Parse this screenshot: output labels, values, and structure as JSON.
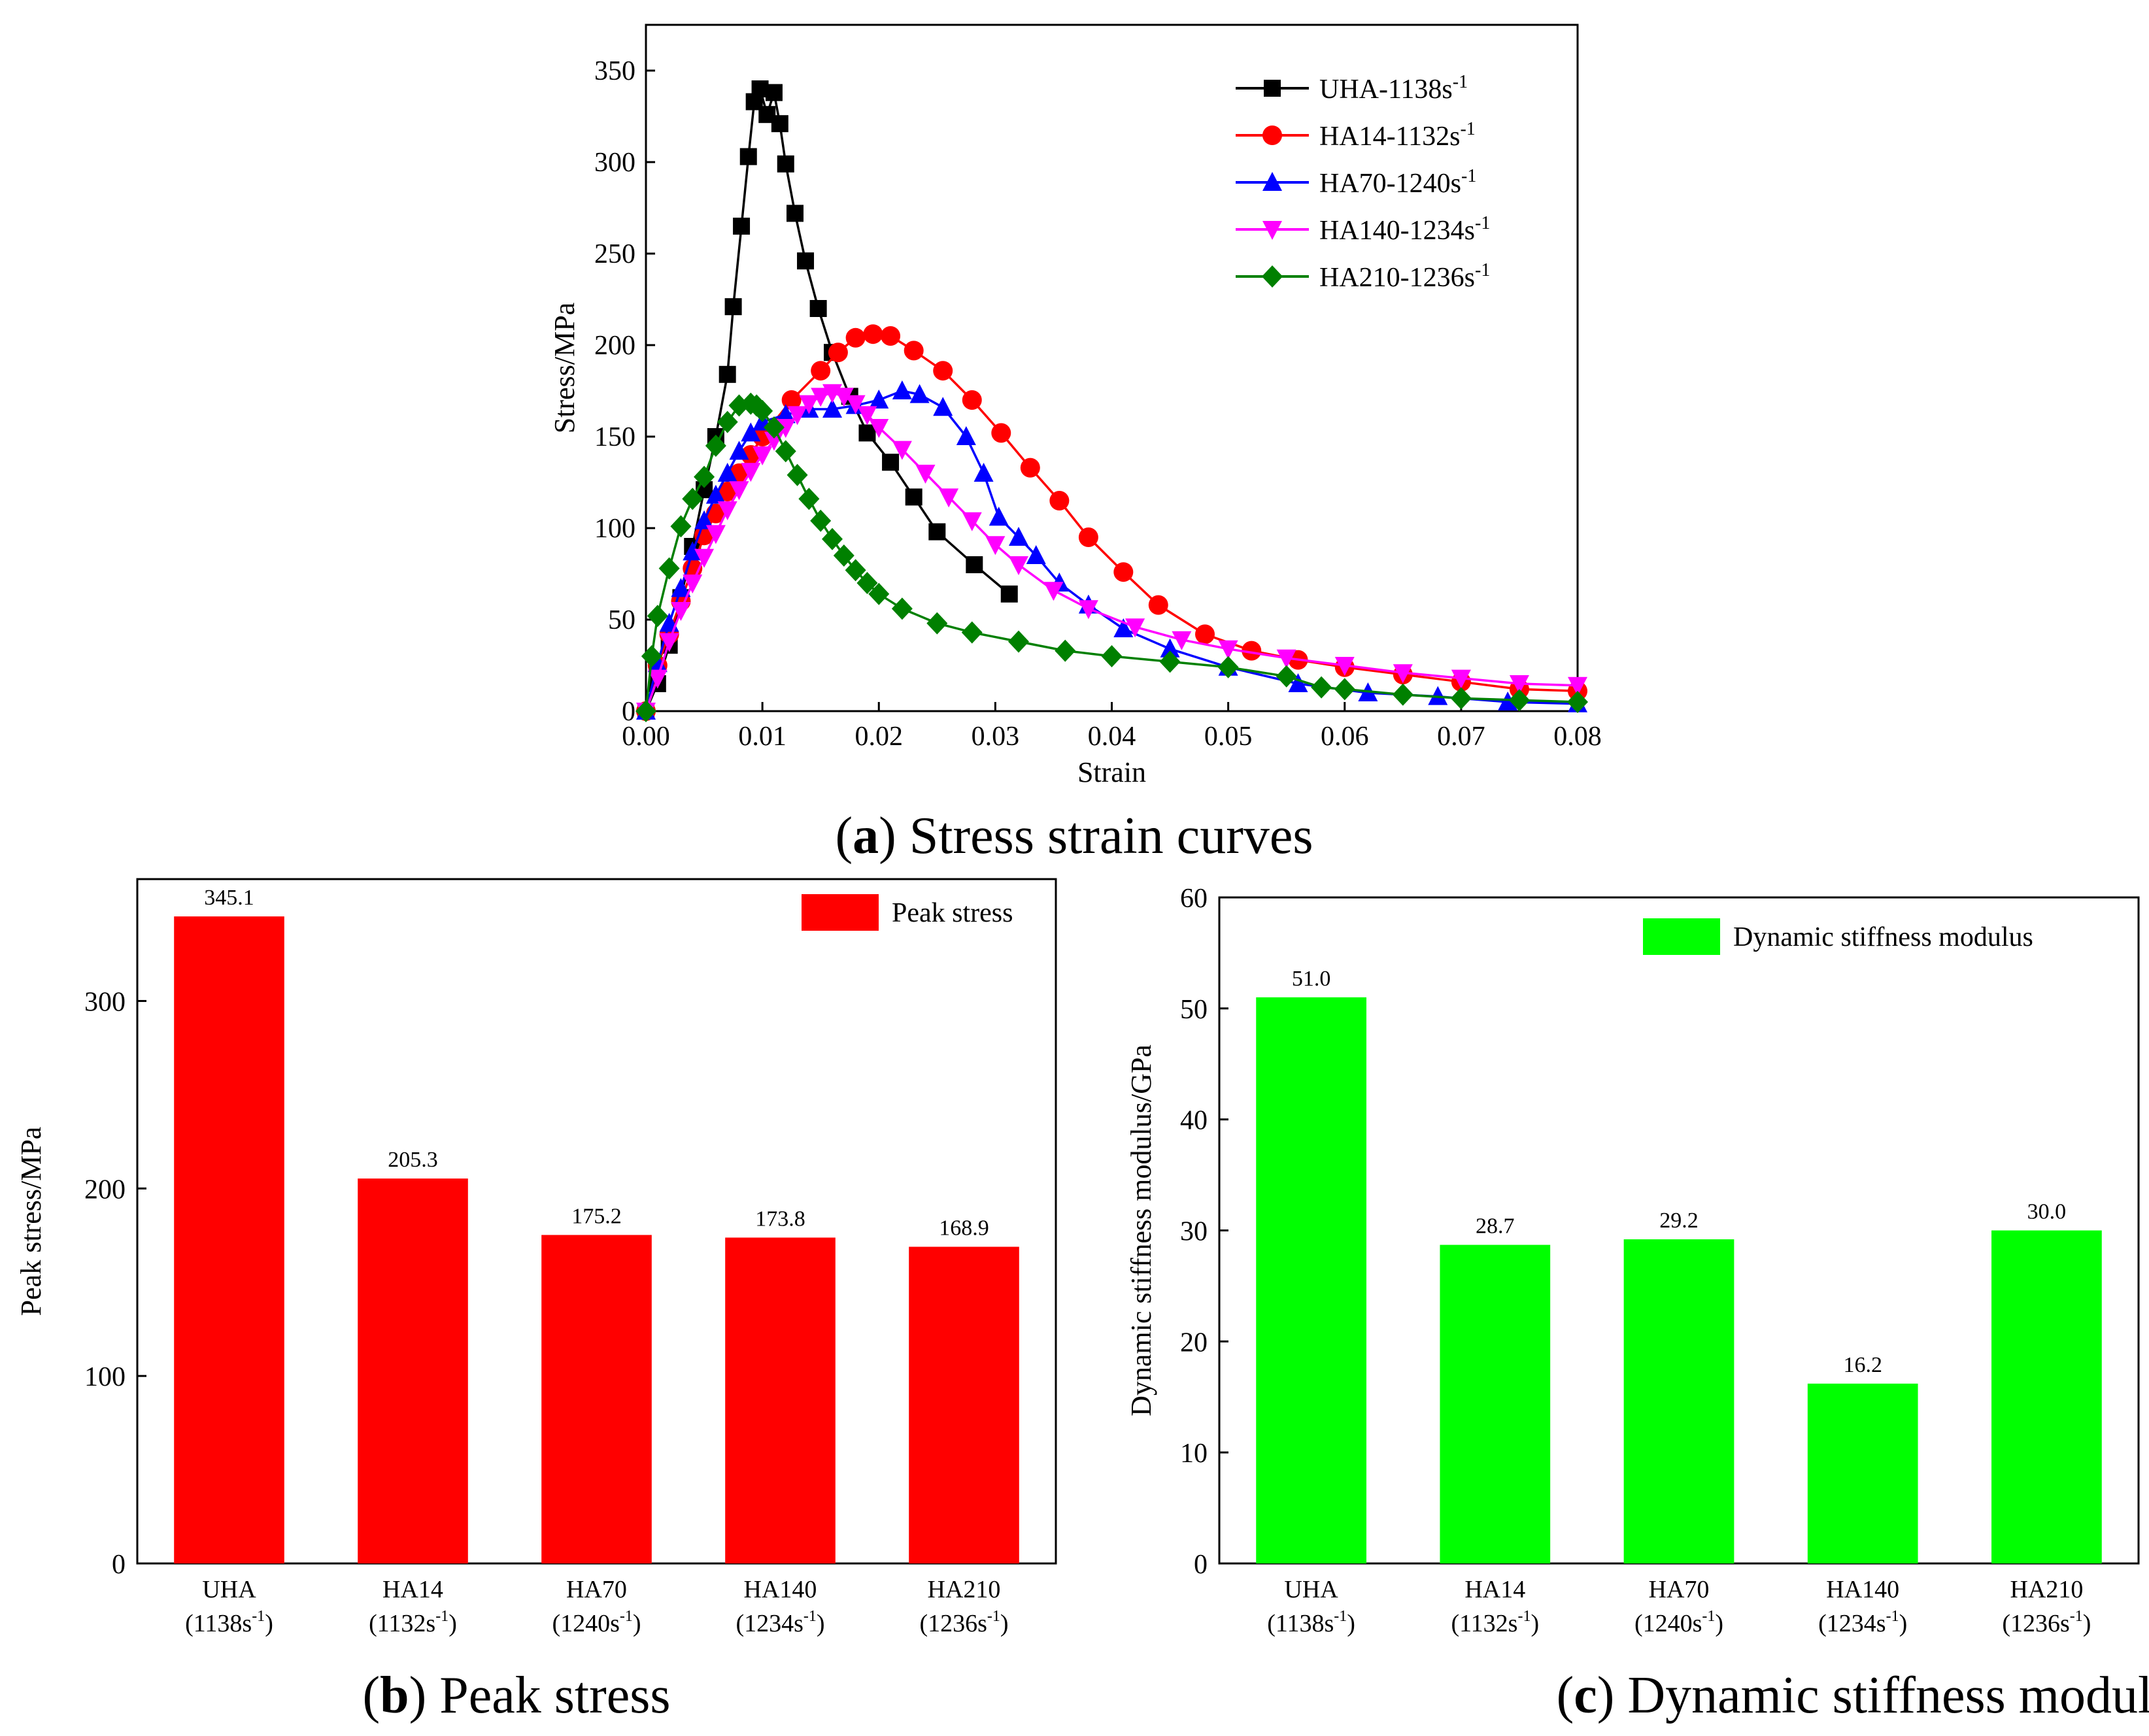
{
  "chart_data": [
    {
      "type": "line",
      "caption_letter": "a",
      "caption_text": "Stress strain curves",
      "xlabel": "Strain",
      "ylabel": "Stress/MPa",
      "xlim": [
        0,
        0.08
      ],
      "ylim": [
        0,
        375
      ],
      "xticks": [
        "0.00",
        "0.01",
        "0.02",
        "0.03",
        "0.04",
        "0.05",
        "0.06",
        "0.07",
        "0.08"
      ],
      "yticks": [
        "0",
        "50",
        "100",
        "150",
        "200",
        "250",
        "300",
        "350"
      ],
      "legend_position": "top-right",
      "series": [
        {
          "name_base": "UHA-1138s",
          "name_sup": "-1",
          "color": "#000000",
          "marker": "square",
          "points": [
            [
              0,
              0
            ],
            [
              0.001,
              15
            ],
            [
              0.002,
              36
            ],
            [
              0.003,
              62
            ],
            [
              0.004,
              90
            ],
            [
              0.005,
              121
            ],
            [
              0.006,
              150
            ],
            [
              0.007,
              184
            ],
            [
              0.0075,
              221
            ],
            [
              0.0082,
              265
            ],
            [
              0.0088,
              303
            ],
            [
              0.0093,
              333
            ],
            [
              0.0098,
              340
            ],
            [
              0.0104,
              326
            ],
            [
              0.011,
              338
            ],
            [
              0.0115,
              321
            ],
            [
              0.012,
              299
            ],
            [
              0.0128,
              272
            ],
            [
              0.0137,
              246
            ],
            [
              0.0148,
              220
            ],
            [
              0.016,
              196
            ],
            [
              0.0175,
              172
            ],
            [
              0.019,
              152
            ],
            [
              0.021,
              136
            ],
            [
              0.023,
              117
            ],
            [
              0.025,
              98
            ],
            [
              0.0282,
              80
            ],
            [
              0.0312,
              64
            ]
          ]
        },
        {
          "name_base": "HA14-1132s",
          "name_sup": "-1",
          "color": "#ff0000",
          "marker": "circle",
          "points": [
            [
              0,
              0
            ],
            [
              0.001,
              25
            ],
            [
              0.002,
              42
            ],
            [
              0.003,
              60
            ],
            [
              0.004,
              78
            ],
            [
              0.005,
              96
            ],
            [
              0.006,
              108
            ],
            [
              0.007,
              120
            ],
            [
              0.008,
              130
            ],
            [
              0.009,
              140
            ],
            [
              0.01,
              150
            ],
            [
              0.0125,
              170
            ],
            [
              0.015,
              186
            ],
            [
              0.0165,
              196
            ],
            [
              0.018,
              204
            ],
            [
              0.0195,
              206
            ],
            [
              0.021,
              205
            ],
            [
              0.023,
              197
            ],
            [
              0.0255,
              186
            ],
            [
              0.028,
              170
            ],
            [
              0.0305,
              152
            ],
            [
              0.033,
              133
            ],
            [
              0.0355,
              115
            ],
            [
              0.038,
              95
            ],
            [
              0.041,
              76
            ],
            [
              0.044,
              58
            ],
            [
              0.048,
              42
            ],
            [
              0.052,
              33
            ],
            [
              0.056,
              28
            ],
            [
              0.06,
              24
            ],
            [
              0.065,
              20
            ],
            [
              0.07,
              16
            ],
            [
              0.075,
              12
            ],
            [
              0.08,
              11
            ]
          ]
        },
        {
          "name_base": "HA70-1240s",
          "name_sup": "-1",
          "color": "#0000ff",
          "marker": "triangle",
          "points": [
            [
              0,
              0
            ],
            [
              0.001,
              26
            ],
            [
              0.002,
              48
            ],
            [
              0.003,
              67
            ],
            [
              0.004,
              87
            ],
            [
              0.005,
              104
            ],
            [
              0.006,
              118
            ],
            [
              0.007,
              130
            ],
            [
              0.008,
              142
            ],
            [
              0.009,
              152
            ],
            [
              0.01,
              158
            ],
            [
              0.012,
              162
            ],
            [
              0.014,
              165
            ],
            [
              0.016,
              165
            ],
            [
              0.018,
              167
            ],
            [
              0.02,
              170
            ],
            [
              0.022,
              175
            ],
            [
              0.0235,
              173
            ],
            [
              0.0255,
              166
            ],
            [
              0.0275,
              150
            ],
            [
              0.029,
              130
            ],
            [
              0.0303,
              106
            ],
            [
              0.032,
              95
            ],
            [
              0.0335,
              85
            ],
            [
              0.0355,
              70
            ],
            [
              0.038,
              58
            ],
            [
              0.041,
              45
            ],
            [
              0.045,
              34
            ],
            [
              0.05,
              24
            ],
            [
              0.056,
              15
            ],
            [
              0.062,
              10
            ],
            [
              0.068,
              8
            ],
            [
              0.074,
              5
            ],
            [
              0.08,
              4
            ]
          ]
        },
        {
          "name_base": "HA140-1234s",
          "name_sup": "-1",
          "color": "#ff00ff",
          "marker": "triangle-down",
          "points": [
            [
              0,
              0
            ],
            [
              0.001,
              18
            ],
            [
              0.002,
              38
            ],
            [
              0.003,
              55
            ],
            [
              0.004,
              70
            ],
            [
              0.005,
              84
            ],
            [
              0.006,
              97
            ],
            [
              0.007,
              110
            ],
            [
              0.008,
              121
            ],
            [
              0.009,
              131
            ],
            [
              0.01,
              140
            ],
            [
              0.011,
              148
            ],
            [
              0.012,
              155
            ],
            [
              0.013,
              162
            ],
            [
              0.014,
              168
            ],
            [
              0.015,
              172
            ],
            [
              0.016,
              174
            ],
            [
              0.017,
              172
            ],
            [
              0.018,
              168
            ],
            [
              0.019,
              162
            ],
            [
              0.02,
              155
            ],
            [
              0.022,
              143
            ],
            [
              0.024,
              130
            ],
            [
              0.026,
              117
            ],
            [
              0.028,
              104
            ],
            [
              0.03,
              91
            ],
            [
              0.032,
              80
            ],
            [
              0.035,
              66
            ],
            [
              0.038,
              56
            ],
            [
              0.042,
              46
            ],
            [
              0.046,
              39
            ],
            [
              0.05,
              34
            ],
            [
              0.055,
              29
            ],
            [
              0.06,
              25
            ],
            [
              0.065,
              21
            ],
            [
              0.07,
              18
            ],
            [
              0.075,
              15
            ],
            [
              0.08,
              14
            ]
          ]
        },
        {
          "name_base": "HA210-1236s",
          "name_sup": "-1",
          "color": "#008000",
          "marker": "diamond",
          "points": [
            [
              0,
              0
            ],
            [
              0.0005,
              30
            ],
            [
              0.001,
              52
            ],
            [
              0.002,
              78
            ],
            [
              0.003,
              101
            ],
            [
              0.004,
              116
            ],
            [
              0.005,
              128
            ],
            [
              0.006,
              145
            ],
            [
              0.007,
              158
            ],
            [
              0.008,
              167
            ],
            [
              0.009,
              168
            ],
            [
              0.0095,
              167
            ],
            [
              0.01,
              164
            ],
            [
              0.011,
              155
            ],
            [
              0.012,
              142
            ],
            [
              0.013,
              129
            ],
            [
              0.014,
              116
            ],
            [
              0.015,
              104
            ],
            [
              0.016,
              94
            ],
            [
              0.017,
              85
            ],
            [
              0.018,
              77
            ],
            [
              0.019,
              70
            ],
            [
              0.02,
              64
            ],
            [
              0.022,
              56
            ],
            [
              0.025,
              48
            ],
            [
              0.028,
              43
            ],
            [
              0.032,
              38
            ],
            [
              0.036,
              33
            ],
            [
              0.04,
              30
            ],
            [
              0.045,
              27
            ],
            [
              0.05,
              24
            ],
            [
              0.055,
              19
            ],
            [
              0.058,
              13
            ],
            [
              0.06,
              12
            ],
            [
              0.065,
              9
            ],
            [
              0.07,
              7
            ],
            [
              0.075,
              6
            ],
            [
              0.08,
              5
            ]
          ]
        }
      ]
    },
    {
      "type": "bar",
      "caption_letter": "b",
      "caption_text": "Peak stress",
      "ylabel": "Peak stress/MPa",
      "ylim": [
        0,
        365
      ],
      "yticks": [
        "0",
        "100",
        "200",
        "300"
      ],
      "bar_color": "#ff0000",
      "legend": "Peak stress",
      "legend_position": "top-right",
      "categories": [
        {
          "name": "UHA",
          "rate_base": "(1138s",
          "rate_sup": "-1",
          "rate_end": ")"
        },
        {
          "name": "HA14",
          "rate_base": "(1132s",
          "rate_sup": "-1",
          "rate_end": ")"
        },
        {
          "name": "HA70",
          "rate_base": "(1240s",
          "rate_sup": "-1",
          "rate_end": ")"
        },
        {
          "name": "HA140",
          "rate_base": "(1234s",
          "rate_sup": "-1",
          "rate_end": ")"
        },
        {
          "name": "HA210",
          "rate_base": "(1236s",
          "rate_sup": "-1",
          "rate_end": ")"
        }
      ],
      "values": [
        345.1,
        205.3,
        175.2,
        173.8,
        168.9
      ],
      "value_labels": [
        "345.1",
        "205.3",
        "175.2",
        "173.8",
        "168.9"
      ]
    },
    {
      "type": "bar",
      "caption_letter": "c",
      "caption_text": "Dynamic stiffness modulus",
      "ylabel": "Dynamic stiffness modulus/GPa",
      "ylim": [
        0,
        60
      ],
      "yticks": [
        "0",
        "10",
        "20",
        "30",
        "40",
        "50",
        "60"
      ],
      "bar_color": "#00ff00",
      "legend": "Dynamic stiffness modulus",
      "legend_position": "top-right",
      "categories": [
        {
          "name": "UHA",
          "rate_base": "(1138s",
          "rate_sup": "-1",
          "rate_end": ")"
        },
        {
          "name": "HA14",
          "rate_base": "(1132s",
          "rate_sup": "-1",
          "rate_end": ")"
        },
        {
          "name": "HA70",
          "rate_base": "(1240s",
          "rate_sup": "-1",
          "rate_end": ")"
        },
        {
          "name": "HA140",
          "rate_base": "(1234s",
          "rate_sup": "-1",
          "rate_end": ")"
        },
        {
          "name": "HA210",
          "rate_base": "(1236s",
          "rate_sup": "-1",
          "rate_end": ")"
        }
      ],
      "values": [
        51.0,
        28.7,
        29.2,
        16.2,
        30.0
      ],
      "value_labels": [
        "51.0",
        "28.7",
        "29.2",
        "16.2",
        "30.0"
      ]
    }
  ]
}
